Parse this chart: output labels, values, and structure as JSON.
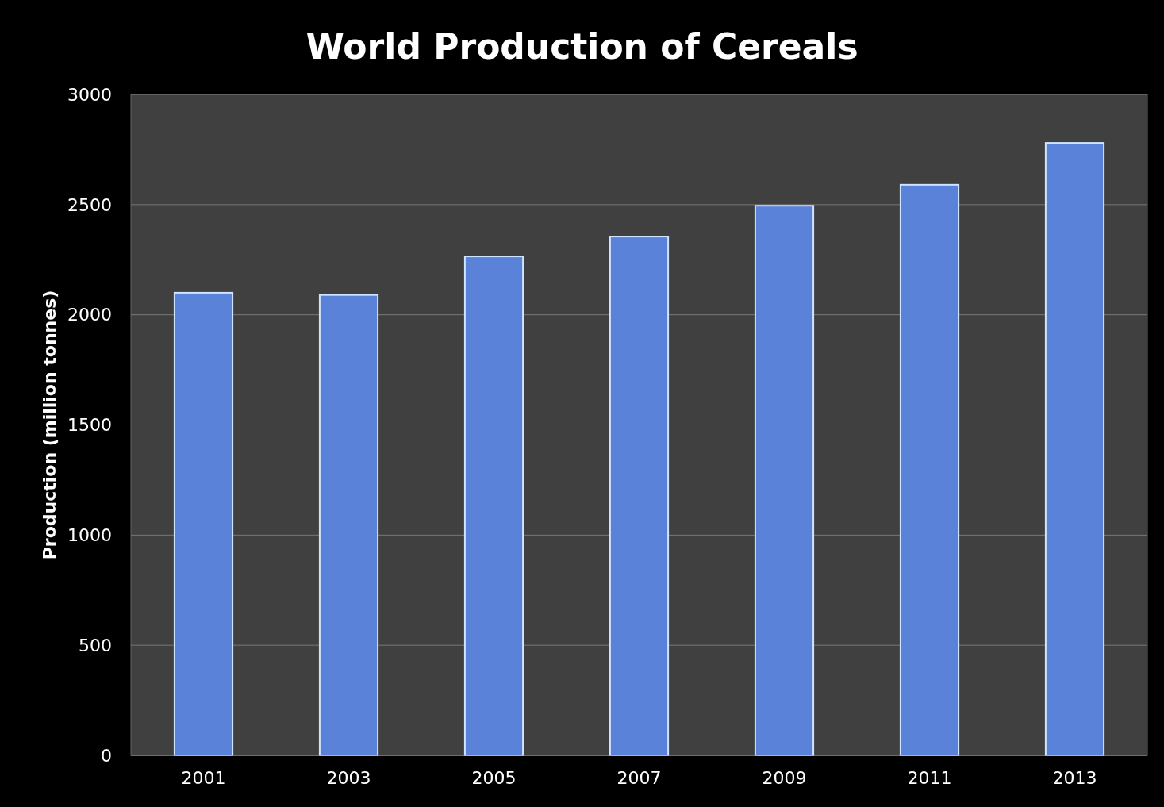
{
  "chart_data": {
    "type": "bar",
    "title": "World Production of Cereals",
    "ylabel": "Production (million tonnes)",
    "categories": [
      "2001",
      "2003",
      "2005",
      "2007",
      "2009",
      "2011",
      "2013"
    ],
    "values": [
      2100,
      2090,
      2265,
      2355,
      2495,
      2590,
      2780
    ],
    "color": "#5a82d8",
    "ylim": [
      0,
      3000
    ],
    "yticks": [
      0,
      500,
      1000,
      1500,
      2000,
      2500,
      3000
    ],
    "grid": "y"
  }
}
